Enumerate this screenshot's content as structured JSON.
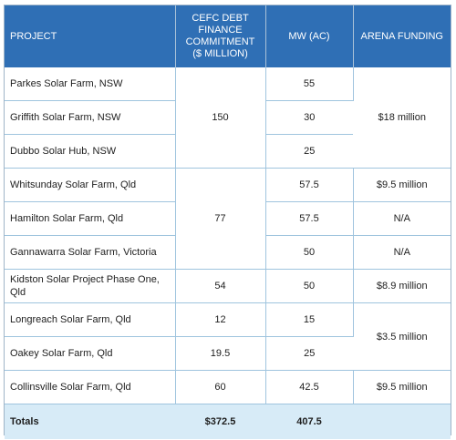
{
  "header": {
    "project": "PROJECT",
    "cefc": "CEFC DEBT FINANCE COMMITMENT ($ MILLION)",
    "mw": "MW (AC)",
    "arena": "ARENA FUNDING"
  },
  "rows": [
    {
      "project": "Parkes Solar Farm, NSW",
      "mw": "55"
    },
    {
      "project": "Griffith Solar Farm, NSW",
      "mw": "30"
    },
    {
      "project": "Dubbo Solar Hub, NSW",
      "mw": "25"
    },
    {
      "project": "Whitsunday Solar Farm, Qld",
      "mw": "57.5"
    },
    {
      "project": "Hamilton Solar Farm, Qld",
      "mw": "57.5"
    },
    {
      "project": "Gannawarra Solar Farm, Victoria",
      "mw": "50"
    },
    {
      "project": "Kidston Solar Project Phase One, Qld",
      "mw": "50"
    },
    {
      "project": "Longreach Solar Farm, Qld",
      "mw": "15"
    },
    {
      "project": "Oakey Solar Farm, Qld",
      "mw": "25"
    },
    {
      "project": "Collinsville Solar Farm, Qld",
      "mw": "42.5"
    }
  ],
  "cefc_groups": [
    "150",
    "77",
    "54",
    "12",
    "19.5",
    "60"
  ],
  "arena_groups": [
    "$18 million",
    "$9.5 million",
    "N/A",
    "N/A",
    "$8.9 million",
    "$3.5 million",
    "$9.5 million"
  ],
  "totals": {
    "label": "Totals",
    "cefc": "$372.5",
    "mw": "407.5"
  }
}
